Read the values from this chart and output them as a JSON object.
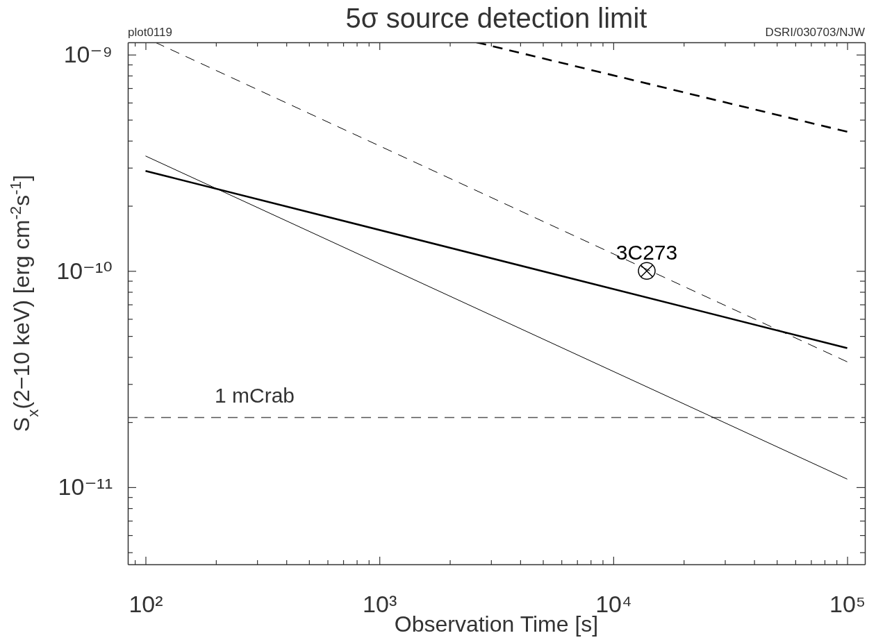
{
  "chart_data": {
    "type": "line",
    "title": "5σ source detection limit",
    "xlabel": "Observation Time [s]",
    "ylabel": "S$_{x}$(2−10 keV) [erg cm$^{-2}$s$^{-1}$]",
    "annotations": [
      "plot0119",
      "DSRI/030703/NJW"
    ],
    "log": "xy",
    "grid": false,
    "legend": false,
    "xlim": [
      84,
      119000
    ],
    "ylim": [
      4.4e-12,
      1.14e-09
    ],
    "xticks": [
      {
        "value": 90,
        "label": null
      },
      {
        "value": 100,
        "label": "10²"
      },
      {
        "value": 200,
        "label": null
      },
      {
        "value": 300,
        "label": null
      },
      {
        "value": 400,
        "label": null
      },
      {
        "value": 500,
        "label": null
      },
      {
        "value": 600,
        "label": null
      },
      {
        "value": 700,
        "label": null
      },
      {
        "value": 800,
        "label": null
      },
      {
        "value": 900,
        "label": null
      },
      {
        "value": 1000,
        "label": "10³"
      },
      {
        "value": 2000,
        "label": null
      },
      {
        "value": 3000,
        "label": null
      },
      {
        "value": 4000,
        "label": null
      },
      {
        "value": 5000,
        "label": null
      },
      {
        "value": 6000,
        "label": null
      },
      {
        "value": 7000,
        "label": null
      },
      {
        "value": 8000,
        "label": null
      },
      {
        "value": 9000,
        "label": null
      },
      {
        "value": 10000,
        "label": "10⁴"
      },
      {
        "value": 20000,
        "label": null
      },
      {
        "value": 30000,
        "label": null
      },
      {
        "value": 40000,
        "label": null
      },
      {
        "value": 50000,
        "label": null
      },
      {
        "value": 60000,
        "label": null
      },
      {
        "value": 70000,
        "label": null
      },
      {
        "value": 80000,
        "label": null
      },
      {
        "value": 90000,
        "label": null
      },
      {
        "value": 100000,
        "label": "10⁵"
      }
    ],
    "yticks": [
      {
        "value": 5e-12,
        "label": null
      },
      {
        "value": 6e-12,
        "label": null
      },
      {
        "value": 7e-12,
        "label": null
      },
      {
        "value": 8e-12,
        "label": null
      },
      {
        "value": 9e-12,
        "label": null
      },
      {
        "value": 1e-11,
        "label": "10⁻¹¹"
      },
      {
        "value": 2e-11,
        "label": null
      },
      {
        "value": 3e-11,
        "label": null
      },
      {
        "value": 4e-11,
        "label": null
      },
      {
        "value": 5e-11,
        "label": null
      },
      {
        "value": 6e-11,
        "label": null
      },
      {
        "value": 7e-11,
        "label": null
      },
      {
        "value": 8e-11,
        "label": null
      },
      {
        "value": 9e-11,
        "label": null
      },
      {
        "value": 1e-10,
        "label": "10⁻¹⁰"
      },
      {
        "value": 2e-10,
        "label": null
      },
      {
        "value": 3e-10,
        "label": null
      },
      {
        "value": 4e-10,
        "label": null
      },
      {
        "value": 5e-10,
        "label": null
      },
      {
        "value": 6e-10,
        "label": null
      },
      {
        "value": 7e-10,
        "label": null
      },
      {
        "value": 8e-10,
        "label": null
      },
      {
        "value": 9e-10,
        "label": null
      },
      {
        "value": 1e-09,
        "label": "10⁻⁹"
      }
    ],
    "ref_lines": [
      {
        "axis": "y",
        "value": 2.1e-11,
        "label": "1 mCrab",
        "color": "#555555",
        "line_style": "dashed"
      }
    ],
    "series": [
      {
        "type": "line",
        "color": "#000000",
        "line_style": "solid",
        "marker": "none",
        "x": [
          100,
          100000
        ],
        "values": [
          2.9e-10,
          4.4e-11
        ]
      },
      {
        "type": "line",
        "color": "#000000",
        "line_style": "solid",
        "marker": "none",
        "x": [
          100,
          100000
        ],
        "values": [
          3.4e-10,
          1.09e-11
        ]
      },
      {
        "type": "line",
        "color": "#000000",
        "line_style": "dashed",
        "marker": "none",
        "x": [
          110,
          100000
        ],
        "values": [
          1.14e-09,
          3.8e-11
        ]
      },
      {
        "type": "line",
        "color": "#000000",
        "line_style": "dashed",
        "marker": "none",
        "x": [
          2600,
          100000
        ],
        "values": [
          1.14e-09,
          4.4e-10
        ]
      },
      {
        "type": "scatter",
        "name": "3C273",
        "color": "#000000",
        "marker": "cross",
        "x": [
          13900
        ],
        "values": [
          1e-10
        ]
      }
    ]
  }
}
